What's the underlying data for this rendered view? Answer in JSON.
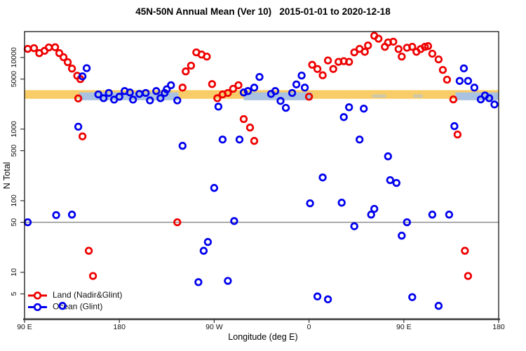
{
  "title": "45N-50N Annual Mean (Ver 10)   2015-01-01 to 2020-12-18",
  "chart_data": {
    "type": "scatter",
    "title": "45N-50N Annual Mean (Ver 10)   2015-01-01 to 2020-12-18",
    "xlabel": "Longitude (deg E)",
    "ylabel": "N Total",
    "x_axis": {
      "range": [
        90,
        540
      ],
      "note": "longitude unwrapped eastward from 90E around the globe to 180",
      "ticks": [
        {
          "value": 90,
          "label": "90 E"
        },
        {
          "value": 180,
          "label": "180"
        },
        {
          "value": 270,
          "label": "90 W"
        },
        {
          "value": 360,
          "label": "0"
        },
        {
          "value": 450,
          "label": "90 E"
        },
        {
          "value": 540,
          "label": "180"
        }
      ]
    },
    "y_axis": {
      "scale": "log",
      "range": [
        2.2,
        23000
      ],
      "ticks": [
        {
          "value": 5,
          "label": "5"
        },
        {
          "value": 10,
          "label": "10"
        },
        {
          "value": 50,
          "label": "50"
        },
        {
          "value": 100,
          "label": "100"
        },
        {
          "value": 500,
          "label": "500"
        },
        {
          "value": 1000,
          "label": "1000"
        },
        {
          "value": 5000,
          "label": "5000"
        },
        {
          "value": 10000,
          "label": "10000"
        }
      ]
    },
    "reference_line": {
      "value": 50,
      "color": "#8f8f8f"
    },
    "bands": [
      {
        "name": "land-mean-band",
        "color": "#f8cd68",
        "opacity": 1,
        "n_range": [
          2650,
          3500
        ],
        "lon_segments": [
          [
            90,
            540
          ]
        ]
      },
      {
        "name": "ocean-mean-band",
        "color": "#a9c2e1",
        "opacity": 1,
        "n_range": [
          2530,
          3260
        ],
        "lon_segments": [
          [
            142,
            236
          ],
          [
            298,
            363
          ],
          [
            499,
            540
          ]
        ]
      },
      {
        "name": "ocean-mean-band-faint",
        "color": "#a9c2e1",
        "opacity": 0.55,
        "n_range": [
          2750,
          3050
        ],
        "lon_segments": [
          [
            420,
            433
          ],
          [
            459,
            468
          ]
        ]
      }
    ],
    "grid": false,
    "legend_position": "bottom-left",
    "series": [
      {
        "name": "Land (Nadir&Glint)",
        "color": "#ee0000",
        "marker": "open-circle",
        "points": [
          [
            93,
            13200
          ],
          [
            99,
            13500
          ],
          [
            104,
            11500
          ],
          [
            109,
            12400
          ],
          [
            113,
            13800
          ],
          [
            119,
            13900
          ],
          [
            123,
            11500
          ],
          [
            127,
            10100
          ],
          [
            131,
            8600
          ],
          [
            135,
            7000
          ],
          [
            140,
            5560
          ],
          [
            141,
            2680
          ],
          [
            143,
            4990
          ],
          [
            145,
            790
          ],
          [
            151,
            20
          ],
          [
            155,
            8.9
          ],
          [
            235,
            50
          ],
          [
            240,
            3800
          ],
          [
            243,
            6400
          ],
          [
            248,
            7700
          ],
          [
            253,
            11800
          ],
          [
            258,
            11000
          ],
          [
            263,
            10300
          ],
          [
            268,
            4250
          ],
          [
            273,
            2700
          ],
          [
            278,
            3050
          ],
          [
            283,
            3200
          ],
          [
            288,
            3650
          ],
          [
            293,
            4100
          ],
          [
            298,
            1380
          ],
          [
            304,
            1050
          ],
          [
            308,
            685
          ],
          [
            360,
            2830
          ],
          [
            363,
            7900
          ],
          [
            368,
            6900
          ],
          [
            373,
            5650
          ],
          [
            378,
            9100
          ],
          [
            383,
            6900
          ],
          [
            388,
            8700
          ],
          [
            393,
            8900
          ],
          [
            398,
            8700
          ],
          [
            403,
            11800
          ],
          [
            408,
            13200
          ],
          [
            413,
            12000
          ],
          [
            416,
            14700
          ],
          [
            422,
            20100
          ],
          [
            426,
            18300
          ],
          [
            432,
            14100
          ],
          [
            435,
            16200
          ],
          [
            440,
            16600
          ],
          [
            445,
            13100
          ],
          [
            448,
            10300
          ],
          [
            453,
            13700
          ],
          [
            458,
            14100
          ],
          [
            462,
            12000
          ],
          [
            466,
            13100
          ],
          [
            470,
            14100
          ],
          [
            473,
            14400
          ],
          [
            477,
            11300
          ],
          [
            483,
            9400
          ],
          [
            487,
            6700
          ],
          [
            491,
            4900
          ],
          [
            497,
            2600
          ],
          [
            501,
            840
          ],
          [
            508,
            20
          ],
          [
            511,
            8.9
          ]
        ]
      },
      {
        "name": "Ocean (Glint)",
        "color": "#0000ee",
        "marker": "open-circle",
        "points": [
          [
            93,
            50
          ],
          [
            120,
            63
          ],
          [
            126,
            3.4
          ],
          [
            135,
            64
          ],
          [
            141,
            1080
          ],
          [
            145,
            5450
          ],
          [
            149,
            7100
          ],
          [
            160,
            3050
          ],
          [
            165,
            2700
          ],
          [
            170,
            3200
          ],
          [
            175,
            2580
          ],
          [
            180,
            2830
          ],
          [
            185,
            3400
          ],
          [
            190,
            3250
          ],
          [
            193,
            2580
          ],
          [
            199,
            3100
          ],
          [
            205,
            3200
          ],
          [
            209,
            2520
          ],
          [
            215,
            3400
          ],
          [
            219,
            2700
          ],
          [
            223,
            3200
          ],
          [
            225,
            3600
          ],
          [
            229,
            4100
          ],
          [
            235,
            2520
          ],
          [
            240,
            585
          ],
          [
            255,
            7.3
          ],
          [
            260,
            20
          ],
          [
            264,
            26.5
          ],
          [
            270,
            151
          ],
          [
            274,
            2060
          ],
          [
            278,
            715
          ],
          [
            283,
            7.6
          ],
          [
            289,
            52
          ],
          [
            294,
            715
          ],
          [
            298,
            3250
          ],
          [
            302,
            3400
          ],
          [
            308,
            3800
          ],
          [
            313,
            5350
          ],
          [
            324,
            3100
          ],
          [
            328,
            3400
          ],
          [
            333,
            2470
          ],
          [
            338,
            1980
          ],
          [
            344,
            3200
          ],
          [
            348,
            4200
          ],
          [
            353,
            5600
          ],
          [
            356,
            3800
          ],
          [
            361,
            92
          ],
          [
            368,
            4.6
          ],
          [
            373,
            211
          ],
          [
            378,
            4.2
          ],
          [
            391,
            94
          ],
          [
            393,
            1470
          ],
          [
            398,
            2020
          ],
          [
            403,
            44
          ],
          [
            408,
            715
          ],
          [
            412,
            1930
          ],
          [
            419,
            64
          ],
          [
            422,
            77
          ],
          [
            435,
            417
          ],
          [
            437,
            194
          ],
          [
            443,
            177
          ],
          [
            448,
            32.5
          ],
          [
            453,
            50
          ],
          [
            458,
            4.5
          ],
          [
            477,
            64
          ],
          [
            483,
            3.4
          ],
          [
            493,
            64
          ],
          [
            498,
            1100
          ],
          [
            503,
            4700
          ],
          [
            507,
            7050
          ],
          [
            511,
            4700
          ],
          [
            517,
            3800
          ],
          [
            523,
            2600
          ],
          [
            527,
            2950
          ],
          [
            531,
            2700
          ],
          [
            536,
            2210
          ]
        ]
      }
    ],
    "legend": {
      "items": [
        {
          "label": "Land (Nadir&Glint)",
          "color": "#ee0000"
        },
        {
          "label": "Ocean (Glint)",
          "color": "#0000ee"
        }
      ]
    }
  }
}
